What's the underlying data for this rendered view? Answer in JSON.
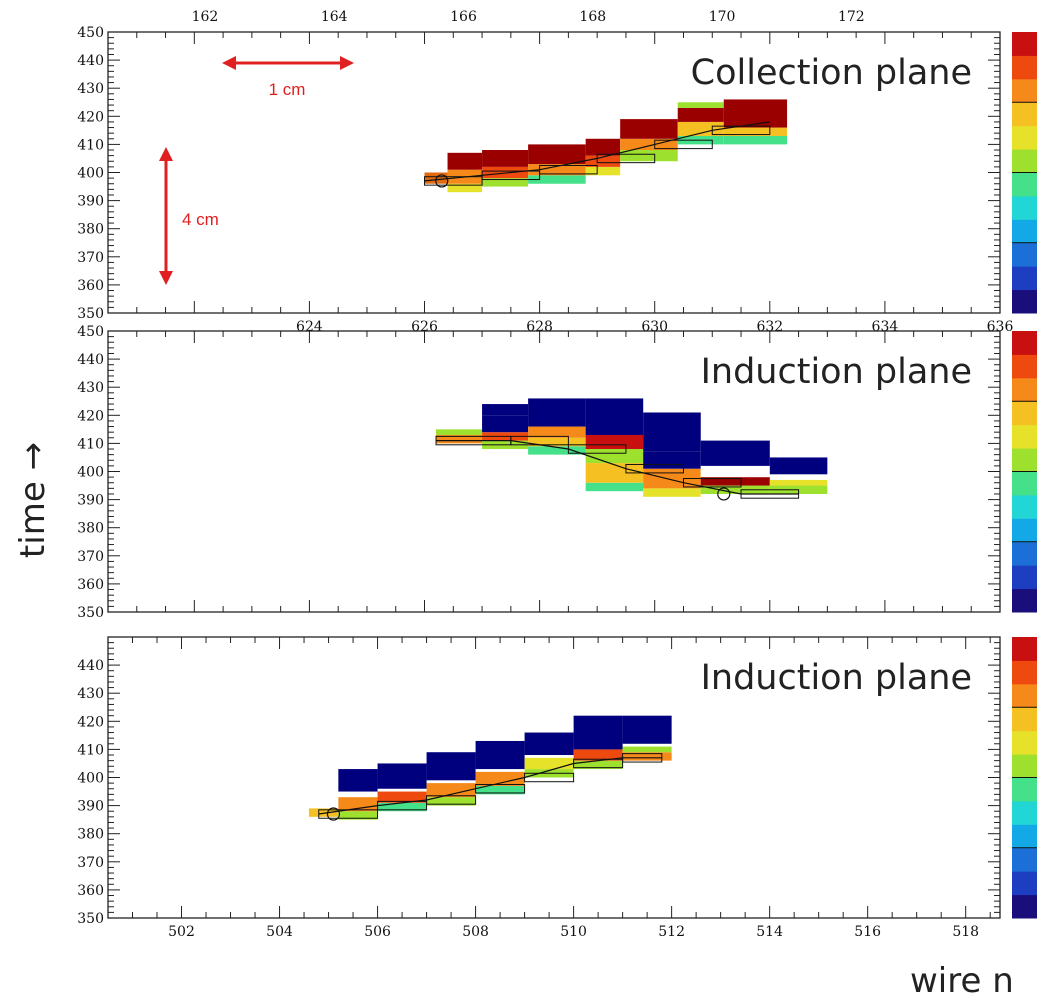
{
  "figure": {
    "ylabel": "time →",
    "xlabel": "wire n",
    "scale_bars": {
      "horizontal": "1 cm",
      "vertical": "4 cm"
    }
  },
  "colors": {
    "red": "#e02020",
    "dark_red": "#9b0000",
    "navy": "#00007f",
    "palette": [
      "#1a0f7a",
      "#1d3ec0",
      "#1c6fd6",
      "#13a9e6",
      "#22d6d6",
      "#45e08a",
      "#9de02e",
      "#e6e22a",
      "#f5c022",
      "#f58a1a",
      "#ee4a10",
      "#c91010"
    ]
  },
  "chart_data": [
    {
      "type": "heatmap",
      "title": "Collection plane",
      "x_range": [
        620.5,
        636
      ],
      "x_top_range": [
        160.5,
        174.3
      ],
      "x_ticks": [
        624,
        626,
        628,
        630,
        632,
        634,
        636
      ],
      "x_top_ticks": [
        162,
        164,
        166,
        168,
        170,
        172
      ],
      "ylim": [
        350,
        450
      ],
      "y_ticks": [
        350,
        360,
        370,
        380,
        390,
        400,
        410,
        420,
        430,
        440,
        450
      ],
      "cells": [
        {
          "x0": 626.0,
          "x1": 626.4,
          "y0": 396,
          "y1": 400,
          "c": "#e06a10"
        },
        {
          "x0": 626.4,
          "x1": 627.0,
          "y0": 393,
          "y1": 396,
          "c": "#e6e22a"
        },
        {
          "x0": 626.4,
          "x1": 627.0,
          "y0": 396,
          "y1": 401,
          "c": "#f58a1a"
        },
        {
          "x0": 626.4,
          "x1": 627.0,
          "y0": 401,
          "y1": 407,
          "c": "#9b0000"
        },
        {
          "x0": 627.0,
          "x1": 627.8,
          "y0": 395,
          "y1": 398,
          "c": "#9de02e"
        },
        {
          "x0": 627.0,
          "x1": 627.8,
          "y0": 398,
          "y1": 402,
          "c": "#ee4a10"
        },
        {
          "x0": 627.0,
          "x1": 627.8,
          "y0": 402,
          "y1": 408,
          "c": "#9b0000"
        },
        {
          "x0": 627.8,
          "x1": 628.8,
          "y0": 396,
          "y1": 399,
          "c": "#45e08a"
        },
        {
          "x0": 627.8,
          "x1": 628.8,
          "y0": 399,
          "y1": 403,
          "c": "#f58a1a"
        },
        {
          "x0": 627.8,
          "x1": 628.8,
          "y0": 403,
          "y1": 410,
          "c": "#9b0000"
        },
        {
          "x0": 628.8,
          "x1": 629.4,
          "y0": 399,
          "y1": 402,
          "c": "#e6e22a"
        },
        {
          "x0": 628.8,
          "x1": 629.4,
          "y0": 402,
          "y1": 406,
          "c": "#ee4a10"
        },
        {
          "x0": 628.8,
          "x1": 629.4,
          "y0": 406,
          "y1": 412,
          "c": "#9b0000"
        },
        {
          "x0": 629.4,
          "x1": 630.4,
          "y0": 404,
          "y1": 408,
          "c": "#9de02e"
        },
        {
          "x0": 629.4,
          "x1": 630.4,
          "y0": 408,
          "y1": 412,
          "c": "#f58a1a"
        },
        {
          "x0": 629.4,
          "x1": 630.4,
          "y0": 412,
          "y1": 419,
          "c": "#9b0000"
        },
        {
          "x0": 630.4,
          "x1": 631.2,
          "y0": 410,
          "y1": 413,
          "c": "#45e08a"
        },
        {
          "x0": 630.4,
          "x1": 631.2,
          "y0": 413,
          "y1": 418,
          "c": "#f5c022"
        },
        {
          "x0": 630.4,
          "x1": 631.2,
          "y0": 418,
          "y1": 423,
          "c": "#9b0000"
        },
        {
          "x0": 630.4,
          "x1": 631.2,
          "y0": 423,
          "y1": 425,
          "c": "#9de02e"
        },
        {
          "x0": 631.2,
          "x1": 632.3,
          "y0": 410,
          "y1": 413,
          "c": "#45e08a"
        },
        {
          "x0": 631.2,
          "x1": 632.3,
          "y0": 413,
          "y1": 416,
          "c": "#f5c022"
        },
        {
          "x0": 631.2,
          "x1": 632.3,
          "y0": 416,
          "y1": 426,
          "c": "#9b0000"
        }
      ],
      "fit_line": [
        [
          626.0,
          397
        ],
        [
          627.0,
          399
        ],
        [
          628.0,
          401
        ],
        [
          629.0,
          405
        ],
        [
          630.0,
          410
        ],
        [
          631.0,
          415
        ],
        [
          632.0,
          418
        ]
      ],
      "vertex_marker": [
        626.3,
        397
      ]
    },
    {
      "type": "heatmap",
      "title": "Induction plane",
      "x_range": [
        620.5,
        636
      ],
      "ylim": [
        350,
        450
      ],
      "y_ticks": [
        350,
        360,
        370,
        380,
        390,
        400,
        410,
        420,
        430,
        440,
        450
      ],
      "cells": [
        {
          "x0": 626.2,
          "x1": 627.0,
          "y0": 410,
          "y1": 413,
          "c": "#f58a1a"
        },
        {
          "x0": 626.2,
          "x1": 627.0,
          "y0": 413,
          "y1": 415,
          "c": "#9de02e"
        },
        {
          "x0": 627.0,
          "x1": 627.8,
          "y0": 408,
          "y1": 411,
          "c": "#9de02e"
        },
        {
          "x0": 627.0,
          "x1": 627.8,
          "y0": 411,
          "y1": 414,
          "c": "#ee4a10"
        },
        {
          "x0": 627.0,
          "x1": 627.8,
          "y0": 414,
          "y1": 420,
          "c": "#00007f"
        },
        {
          "x0": 627.0,
          "x1": 627.8,
          "y0": 420,
          "y1": 424,
          "c": "#00007f"
        },
        {
          "x0": 627.8,
          "x1": 628.8,
          "y0": 406,
          "y1": 409,
          "c": "#45e08a"
        },
        {
          "x0": 627.8,
          "x1": 628.8,
          "y0": 409,
          "y1": 412,
          "c": "#f5c022"
        },
        {
          "x0": 627.8,
          "x1": 628.8,
          "y0": 412,
          "y1": 416,
          "c": "#f58a1a"
        },
        {
          "x0": 627.8,
          "x1": 628.8,
          "y0": 416,
          "y1": 426,
          "c": "#00007f"
        },
        {
          "x0": 628.8,
          "x1": 629.8,
          "y0": 393,
          "y1": 396,
          "c": "#45e08a"
        },
        {
          "x0": 628.8,
          "x1": 629.8,
          "y0": 396,
          "y1": 403,
          "c": "#f5c022"
        },
        {
          "x0": 628.8,
          "x1": 629.8,
          "y0": 403,
          "y1": 408,
          "c": "#9de02e"
        },
        {
          "x0": 628.8,
          "x1": 629.8,
          "y0": 408,
          "y1": 413,
          "c": "#c91010"
        },
        {
          "x0": 628.8,
          "x1": 629.8,
          "y0": 413,
          "y1": 426,
          "c": "#00007f"
        },
        {
          "x0": 629.8,
          "x1": 630.8,
          "y0": 391,
          "y1": 394,
          "c": "#e6e22a"
        },
        {
          "x0": 629.8,
          "x1": 630.8,
          "y0": 394,
          "y1": 401,
          "c": "#f58a1a"
        },
        {
          "x0": 629.8,
          "x1": 630.8,
          "y0": 401,
          "y1": 407,
          "c": "#00007f"
        },
        {
          "x0": 629.8,
          "x1": 630.8,
          "y0": 407,
          "y1": 421,
          "c": "#00007f"
        },
        {
          "x0": 630.8,
          "x1": 632.0,
          "y0": 392,
          "y1": 395,
          "c": "#9de02e"
        },
        {
          "x0": 630.8,
          "x1": 632.0,
          "y0": 395,
          "y1": 398,
          "c": "#9b0000"
        },
        {
          "x0": 630.8,
          "x1": 632.0,
          "y0": 398,
          "y1": 402,
          "c": "#ffffff"
        },
        {
          "x0": 630.8,
          "x1": 632.0,
          "y0": 402,
          "y1": 411,
          "c": "#00007f"
        },
        {
          "x0": 632.0,
          "x1": 633.0,
          "y0": 392,
          "y1": 395,
          "c": "#9de02e"
        },
        {
          "x0": 632.0,
          "x1": 633.0,
          "y0": 395,
          "y1": 397,
          "c": "#e6e22a"
        },
        {
          "x0": 632.0,
          "x1": 633.0,
          "y0": 399,
          "y1": 405,
          "c": "#00007f"
        }
      ],
      "fit_line": [
        [
          626.2,
          411
        ],
        [
          627.5,
          411
        ],
        [
          628.5,
          408
        ],
        [
          629.5,
          401
        ],
        [
          630.5,
          396
        ],
        [
          631.5,
          392
        ],
        [
          632.5,
          392
        ]
      ],
      "vertex_marker": [
        631.2,
        392
      ]
    },
    {
      "type": "heatmap",
      "title": "Induction plane",
      "x_range": [
        500.5,
        518.7
      ],
      "x_ticks": [
        502,
        504,
        506,
        508,
        510,
        512,
        514,
        516,
        518
      ],
      "ylim": [
        350,
        450
      ],
      "y_ticks": [
        350,
        360,
        370,
        380,
        390,
        400,
        410,
        420,
        430,
        440
      ],
      "cells": [
        {
          "x0": 504.6,
          "x1": 505.2,
          "y0": 386,
          "y1": 389,
          "c": "#f5c022"
        },
        {
          "x0": 505.2,
          "x1": 506.0,
          "y0": 385,
          "y1": 388,
          "c": "#9de02e"
        },
        {
          "x0": 505.2,
          "x1": 506.0,
          "y0": 388,
          "y1": 393,
          "c": "#f58a1a"
        },
        {
          "x0": 505.2,
          "x1": 506.0,
          "y0": 395,
          "y1": 403,
          "c": "#00007f"
        },
        {
          "x0": 506.0,
          "x1": 507.0,
          "y0": 388,
          "y1": 391,
          "c": "#45e08a"
        },
        {
          "x0": 506.0,
          "x1": 507.0,
          "y0": 391,
          "y1": 395,
          "c": "#ee4a10"
        },
        {
          "x0": 506.0,
          "x1": 507.0,
          "y0": 396,
          "y1": 405,
          "c": "#00007f"
        },
        {
          "x0": 507.0,
          "x1": 508.0,
          "y0": 390,
          "y1": 393,
          "c": "#9de02e"
        },
        {
          "x0": 507.0,
          "x1": 508.0,
          "y0": 393,
          "y1": 398,
          "c": "#f58a1a"
        },
        {
          "x0": 507.0,
          "x1": 508.0,
          "y0": 399,
          "y1": 409,
          "c": "#00007f"
        },
        {
          "x0": 508.0,
          "x1": 509.0,
          "y0": 394,
          "y1": 397,
          "c": "#45e08a"
        },
        {
          "x0": 508.0,
          "x1": 509.0,
          "y0": 397,
          "y1": 402,
          "c": "#f58a1a"
        },
        {
          "x0": 508.0,
          "x1": 509.0,
          "y0": 403,
          "y1": 413,
          "c": "#00007f"
        },
        {
          "x0": 509.0,
          "x1": 510.0,
          "y0": 400,
          "y1": 403,
          "c": "#9de02e"
        },
        {
          "x0": 509.0,
          "x1": 510.0,
          "y0": 403,
          "y1": 407,
          "c": "#e6e22a"
        },
        {
          "x0": 509.0,
          "x1": 510.0,
          "y0": 408,
          "y1": 416,
          "c": "#00007f"
        },
        {
          "x0": 510.0,
          "x1": 511.0,
          "y0": 403,
          "y1": 406,
          "c": "#9de02e"
        },
        {
          "x0": 510.0,
          "x1": 511.0,
          "y0": 406,
          "y1": 410,
          "c": "#ee4a10"
        },
        {
          "x0": 510.0,
          "x1": 511.0,
          "y0": 410,
          "y1": 422,
          "c": "#00007f"
        },
        {
          "x0": 511.0,
          "x1": 512.0,
          "y0": 406,
          "y1": 409,
          "c": "#f58a1a"
        },
        {
          "x0": 511.0,
          "x1": 512.0,
          "y0": 409,
          "y1": 411,
          "c": "#9de02e"
        },
        {
          "x0": 511.0,
          "x1": 512.0,
          "y0": 412,
          "y1": 422,
          "c": "#00007f"
        }
      ],
      "fit_line": [
        [
          504.8,
          387
        ],
        [
          506.0,
          390
        ],
        [
          507.0,
          392
        ],
        [
          508.0,
          396
        ],
        [
          509.0,
          400
        ],
        [
          510.0,
          405
        ],
        [
          511.0,
          407
        ],
        [
          511.8,
          407
        ]
      ],
      "vertex_marker": [
        505.1,
        387
      ]
    }
  ]
}
